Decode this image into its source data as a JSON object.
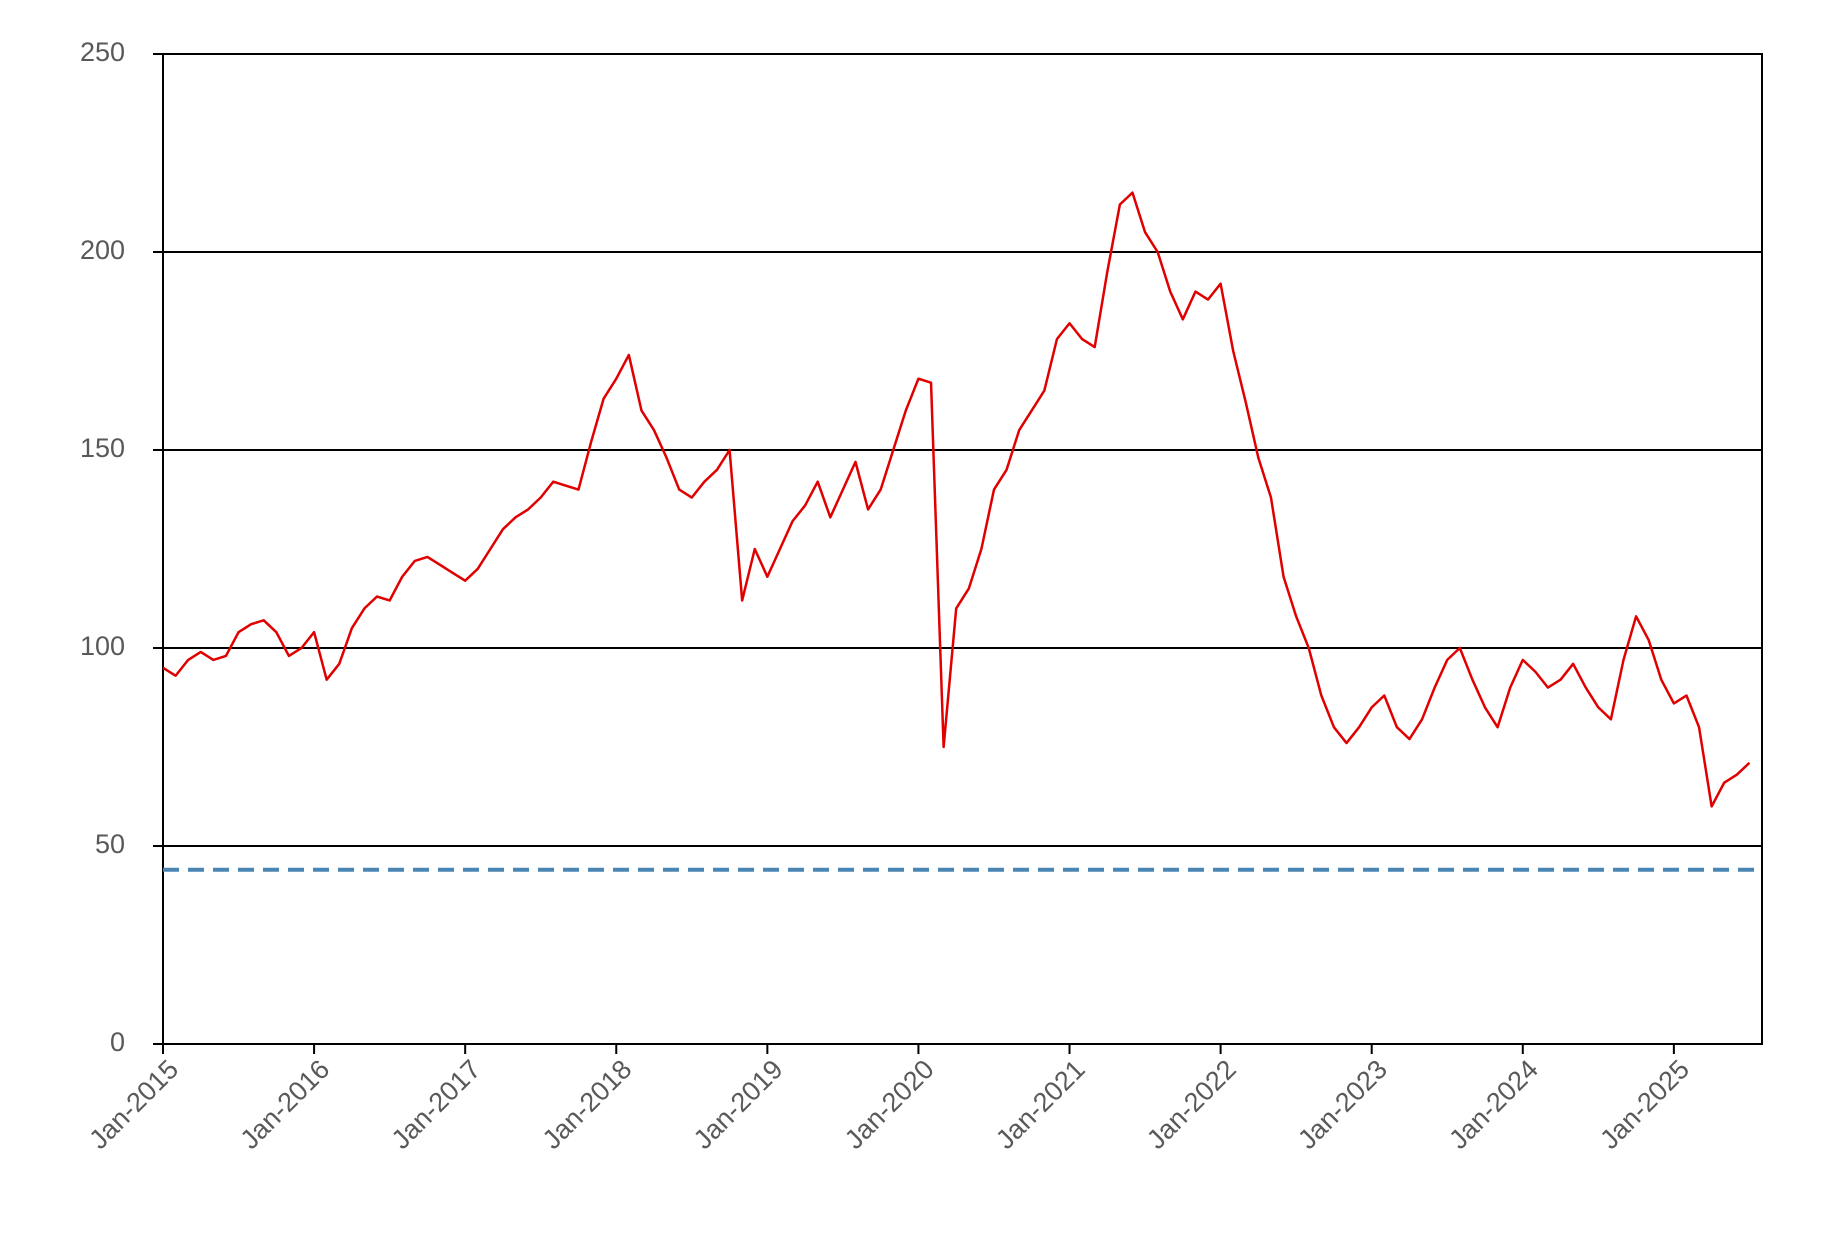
{
  "chart_data": {
    "type": "line",
    "x": [
      "2015-01",
      "2015-02",
      "2015-03",
      "2015-04",
      "2015-05",
      "2015-06",
      "2015-07",
      "2015-08",
      "2015-09",
      "2015-10",
      "2015-11",
      "2015-12",
      "2016-01",
      "2016-02",
      "2016-03",
      "2016-04",
      "2016-05",
      "2016-06",
      "2016-07",
      "2016-08",
      "2016-09",
      "2016-10",
      "2016-11",
      "2016-12",
      "2017-01",
      "2017-02",
      "2017-03",
      "2017-04",
      "2017-05",
      "2017-06",
      "2017-07",
      "2017-08",
      "2017-09",
      "2017-10",
      "2017-11",
      "2017-12",
      "2018-01",
      "2018-02",
      "2018-03",
      "2018-04",
      "2018-05",
      "2018-06",
      "2018-07",
      "2018-08",
      "2018-09",
      "2018-10",
      "2018-11",
      "2018-12",
      "2019-01",
      "2019-02",
      "2019-03",
      "2019-04",
      "2019-05",
      "2019-06",
      "2019-07",
      "2019-08",
      "2019-09",
      "2019-10",
      "2019-11",
      "2019-12",
      "2020-01",
      "2020-02",
      "2020-03",
      "2020-04",
      "2020-05",
      "2020-06",
      "2020-07",
      "2020-08",
      "2020-09",
      "2020-10",
      "2020-11",
      "2020-12",
      "2021-01",
      "2021-02",
      "2021-03",
      "2021-04",
      "2021-05",
      "2021-06",
      "2021-07",
      "2021-08",
      "2021-09",
      "2021-10",
      "2021-11",
      "2021-12",
      "2022-01",
      "2022-02",
      "2022-03",
      "2022-04",
      "2022-05",
      "2022-06",
      "2022-07",
      "2022-08",
      "2022-09",
      "2022-10",
      "2022-11",
      "2022-12",
      "2023-01",
      "2023-02",
      "2023-03",
      "2023-04",
      "2023-05",
      "2023-06",
      "2023-07",
      "2023-08",
      "2023-09",
      "2023-10",
      "2023-11",
      "2023-12",
      "2024-01",
      "2024-02",
      "2024-03",
      "2024-04",
      "2024-05",
      "2024-06",
      "2024-07",
      "2024-08",
      "2024-09",
      "2024-10",
      "2024-11",
      "2024-12",
      "2025-01",
      "2025-02",
      "2025-03",
      "2025-04",
      "2025-05",
      "2025-06",
      "2025-07"
    ],
    "series": [
      {
        "color": "#e00000",
        "values": [
          95,
          93,
          97,
          99,
          97,
          98,
          104,
          106,
          107,
          104,
          98,
          100,
          104,
          92,
          96,
          105,
          110,
          113,
          112,
          118,
          122,
          123,
          121,
          119,
          117,
          120,
          125,
          130,
          133,
          135,
          138,
          142,
          141,
          140,
          152,
          163,
          168,
          174,
          160,
          155,
          148,
          140,
          138,
          142,
          145,
          150,
          112,
          125,
          118,
          125,
          132,
          136,
          142,
          133,
          140,
          147,
          135,
          140,
          150,
          160,
          168,
          167,
          75,
          110,
          115,
          125,
          140,
          145,
          155,
          160,
          165,
          178,
          182,
          178,
          176,
          195,
          212,
          215,
          205,
          200,
          190,
          183,
          190,
          188,
          192,
          175,
          162,
          148,
          138,
          118,
          108,
          100,
          88,
          80,
          76,
          80,
          85,
          88,
          80,
          77,
          82,
          90,
          97,
          100,
          92,
          85,
          80,
          90,
          97,
          94,
          90,
          92,
          96,
          90,
          85,
          82,
          97,
          108,
          102,
          92,
          86,
          88,
          80,
          60,
          66,
          68,
          71
        ]
      }
    ],
    "reference_line": {
      "value": 44,
      "color": "#4a86b4",
      "style": "dashed"
    },
    "xlim": [
      "2015-01",
      "2025-08"
    ],
    "xticks": [
      {
        "value": "2015-01",
        "label": "Jan-2015"
      },
      {
        "value": "2016-01",
        "label": "Jan-2016"
      },
      {
        "value": "2017-01",
        "label": "Jan-2017"
      },
      {
        "value": "2018-01",
        "label": "Jan-2018"
      },
      {
        "value": "2019-01",
        "label": "Jan-2019"
      },
      {
        "value": "2020-01",
        "label": "Jan-2020"
      },
      {
        "value": "2021-01",
        "label": "Jan-2021"
      },
      {
        "value": "2022-01",
        "label": "Jan-2022"
      },
      {
        "value": "2023-01",
        "label": "Jan-2023"
      },
      {
        "value": "2024-01",
        "label": "Jan-2024"
      },
      {
        "value": "2025-01",
        "label": "Jan-2025"
      }
    ],
    "ylim": [
      0,
      250
    ],
    "yticks": [
      0,
      50,
      100,
      150,
      200,
      250
    ],
    "grid": true
  }
}
